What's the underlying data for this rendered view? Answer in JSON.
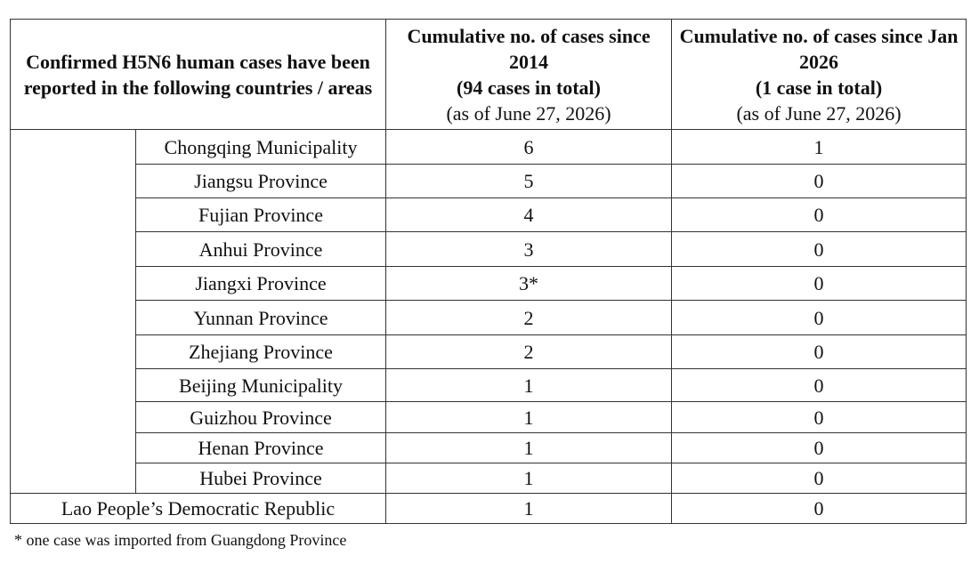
{
  "table": {
    "header": [
      "Confirmed H5N6 human cases have been reported in the following countries / areas",
      {
        "title": "Cumulative no. of cases since 2014",
        "total": "(94 cases in total)",
        "as_of": "(as of June 27, 2026)"
      },
      {
        "title": "Cumulative no. of cases since Jan 2026",
        "total": "(1 case in total)",
        "as_of": "(as of June 27, 2026)"
      }
    ],
    "china_areas": [
      {
        "area": "Chongqing Municipality",
        "cumulative": 6,
        "since_jan": 1
      },
      {
        "area": "Jiangsu Province",
        "cumulative": 5,
        "since_jan": 0
      },
      {
        "area": "Fujian Province",
        "cumulative": 4,
        "since_jan": 0
      },
      {
        "area": "Anhui Province",
        "cumulative": 3,
        "since_jan": 0
      },
      {
        "area": "Jiangxi Province",
        "cumulative": "3*",
        "since_jan": 0
      },
      {
        "area": "Yunnan Province",
        "cumulative": 2,
        "since_jan": 0
      },
      {
        "area": "Zhejiang Province",
        "cumulative": 2,
        "since_jan": 0
      },
      {
        "area": "Beijing Municipality",
        "cumulative": 1,
        "since_jan": 0
      },
      {
        "area": "Guizhou Province",
        "cumulative": 1,
        "since_jan": 0
      },
      {
        "area": "Henan Province",
        "cumulative": 1,
        "since_jan": 0
      },
      {
        "area": "Hubei Province",
        "cumulative": 1,
        "since_jan": 0
      }
    ],
    "other_countries": [
      {
        "area": "Lao People’s Democratic Republic",
        "cumulative": 1,
        "since_jan": 0
      }
    ]
  },
  "footnote": "* one case was imported from Guangdong Province"
}
